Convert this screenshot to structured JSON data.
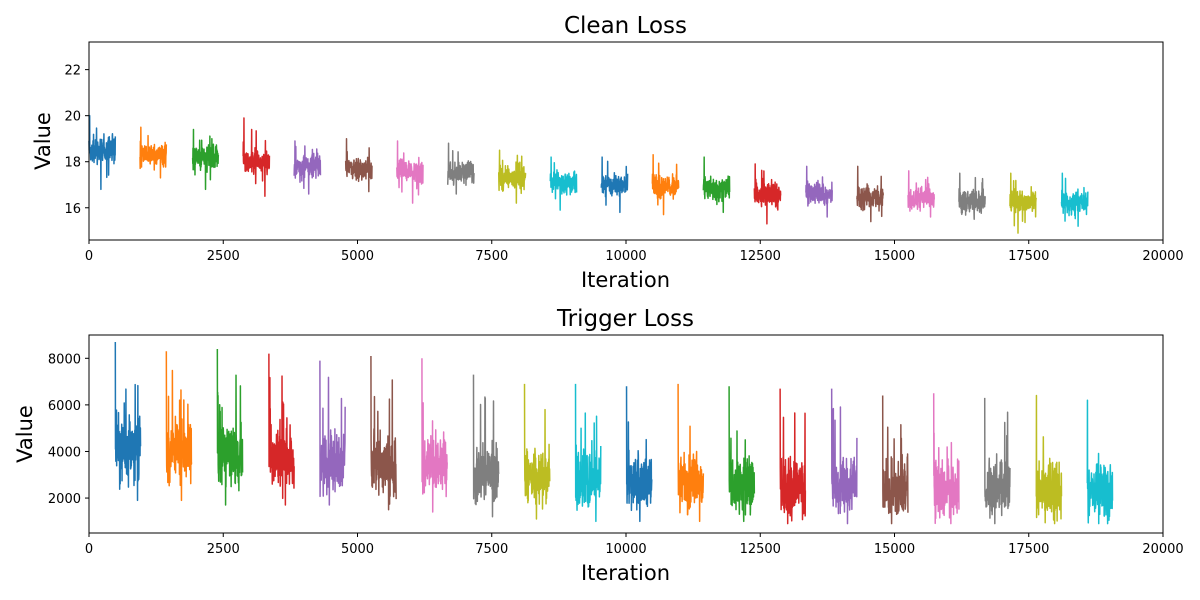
{
  "colors": [
    "#1f77b4",
    "#ff7f0e",
    "#2ca02c",
    "#d62728",
    "#9467bd",
    "#8c564b",
    "#e377c2",
    "#7f7f7f",
    "#bcbd22",
    "#17becf"
  ],
  "chart_data": [
    {
      "type": "line",
      "title": "Clean Loss",
      "xlabel": "Iteration",
      "ylabel": "Value",
      "xlim": [
        0,
        20000
      ],
      "ylim": [
        14.6,
        23.2
      ],
      "xticks": [
        0,
        2500,
        5000,
        7500,
        10000,
        12500,
        15000,
        17500,
        20000
      ],
      "yticks": [
        16,
        18,
        20,
        22
      ],
      "grid": false,
      "legend": "none",
      "series": [
        {
          "x_start": 0,
          "x_end": 490,
          "mean": 18.5,
          "spread": 0.6,
          "min": 16.8,
          "max": 20.0
        },
        {
          "x_start": 950,
          "x_end": 1440,
          "mean": 18.3,
          "spread": 0.5,
          "min": 17.3,
          "max": 19.5
        },
        {
          "x_start": 1930,
          "x_end": 2410,
          "mean": 18.2,
          "spread": 0.5,
          "min": 16.8,
          "max": 19.4
        },
        {
          "x_start": 2870,
          "x_end": 3360,
          "mean": 18.0,
          "spread": 0.5,
          "min": 16.5,
          "max": 19.9
        },
        {
          "x_start": 3820,
          "x_end": 4310,
          "mean": 17.8,
          "spread": 0.5,
          "min": 16.6,
          "max": 18.9
        },
        {
          "x_start": 4780,
          "x_end": 5270,
          "mean": 17.7,
          "spread": 0.5,
          "min": 16.7,
          "max": 19.0
        },
        {
          "x_start": 5730,
          "x_end": 6220,
          "mean": 17.6,
          "spread": 0.5,
          "min": 16.2,
          "max": 18.9
        },
        {
          "x_start": 6680,
          "x_end": 7170,
          "mean": 17.5,
          "spread": 0.5,
          "min": 16.6,
          "max": 18.8
        },
        {
          "x_start": 7630,
          "x_end": 8130,
          "mean": 17.3,
          "spread": 0.5,
          "min": 16.2,
          "max": 18.5
        },
        {
          "x_start": 8590,
          "x_end": 9080,
          "mean": 17.1,
          "spread": 0.5,
          "min": 15.9,
          "max": 18.2
        },
        {
          "x_start": 9540,
          "x_end": 10030,
          "mean": 17.0,
          "spread": 0.5,
          "min": 15.8,
          "max": 18.2
        },
        {
          "x_start": 10490,
          "x_end": 10980,
          "mean": 16.9,
          "spread": 0.5,
          "min": 15.7,
          "max": 18.3
        },
        {
          "x_start": 11440,
          "x_end": 11930,
          "mean": 16.8,
          "spread": 0.5,
          "min": 15.8,
          "max": 18.2
        },
        {
          "x_start": 12390,
          "x_end": 12880,
          "mean": 16.6,
          "spread": 0.5,
          "min": 15.3,
          "max": 17.9
        },
        {
          "x_start": 13350,
          "x_end": 13840,
          "mean": 16.6,
          "spread": 0.5,
          "min": 15.6,
          "max": 17.8
        },
        {
          "x_start": 14300,
          "x_end": 14790,
          "mean": 16.5,
          "spread": 0.5,
          "min": 15.4,
          "max": 17.8
        },
        {
          "x_start": 15250,
          "x_end": 15740,
          "mean": 16.4,
          "spread": 0.5,
          "min": 15.6,
          "max": 17.6
        },
        {
          "x_start": 16200,
          "x_end": 16690,
          "mean": 16.3,
          "spread": 0.5,
          "min": 15.5,
          "max": 17.5
        },
        {
          "x_start": 17150,
          "x_end": 17640,
          "mean": 16.3,
          "spread": 0.5,
          "min": 14.9,
          "max": 17.5
        },
        {
          "x_start": 18110,
          "x_end": 18600,
          "mean": 16.2,
          "spread": 0.5,
          "min": 15.2,
          "max": 17.5
        }
      ]
    },
    {
      "type": "line",
      "title": "Trigger Loss",
      "xlabel": "Iteration",
      "ylabel": "Value",
      "xlim": [
        0,
        20000
      ],
      "ylim": [
        500,
        9000
      ],
      "xticks": [
        0,
        2500,
        5000,
        7500,
        10000,
        12500,
        15000,
        17500,
        20000
      ],
      "yticks": [
        2000,
        4000,
        6000,
        8000
      ],
      "grid": false,
      "legend": "none",
      "series": [
        {
          "x_start": 490,
          "x_end": 960,
          "mean": 4200,
          "spread": 1300,
          "min": 1900,
          "max": 8700
        },
        {
          "x_start": 1440,
          "x_end": 1910,
          "mean": 4000,
          "spread": 1300,
          "min": 1900,
          "max": 8300
        },
        {
          "x_start": 2390,
          "x_end": 2860,
          "mean": 3800,
          "spread": 1300,
          "min": 1700,
          "max": 8400
        },
        {
          "x_start": 3350,
          "x_end": 3820,
          "mean": 3700,
          "spread": 1300,
          "min": 1700,
          "max": 8200
        },
        {
          "x_start": 4300,
          "x_end": 4770,
          "mean": 3500,
          "spread": 1300,
          "min": 1700,
          "max": 7900
        },
        {
          "x_start": 5250,
          "x_end": 5720,
          "mean": 3400,
          "spread": 1300,
          "min": 1500,
          "max": 8100
        },
        {
          "x_start": 6200,
          "x_end": 6670,
          "mean": 3300,
          "spread": 1300,
          "min": 1400,
          "max": 8000
        },
        {
          "x_start": 7160,
          "x_end": 7630,
          "mean": 3000,
          "spread": 1200,
          "min": 1200,
          "max": 7300
        },
        {
          "x_start": 8110,
          "x_end": 8580,
          "mean": 2900,
          "spread": 1200,
          "min": 1100,
          "max": 6900
        },
        {
          "x_start": 9060,
          "x_end": 9530,
          "mean": 2800,
          "spread": 1200,
          "min": 1000,
          "max": 6900
        },
        {
          "x_start": 10010,
          "x_end": 10480,
          "mean": 2700,
          "spread": 1200,
          "min": 1000,
          "max": 6800
        },
        {
          "x_start": 10970,
          "x_end": 11440,
          "mean": 2700,
          "spread": 1200,
          "min": 1000,
          "max": 6900
        },
        {
          "x_start": 11920,
          "x_end": 12390,
          "mean": 2600,
          "spread": 1200,
          "min": 1000,
          "max": 6800
        },
        {
          "x_start": 12870,
          "x_end": 13340,
          "mean": 2500,
          "spread": 1200,
          "min": 900,
          "max": 6700
        },
        {
          "x_start": 13830,
          "x_end": 14300,
          "mean": 2500,
          "spread": 1200,
          "min": 900,
          "max": 6700
        },
        {
          "x_start": 14780,
          "x_end": 15250,
          "mean": 2400,
          "spread": 1200,
          "min": 900,
          "max": 6400
        },
        {
          "x_start": 15730,
          "x_end": 16200,
          "mean": 2400,
          "spread": 1200,
          "min": 900,
          "max": 6500
        },
        {
          "x_start": 16680,
          "x_end": 17150,
          "mean": 2400,
          "spread": 1200,
          "min": 900,
          "max": 6300
        },
        {
          "x_start": 17640,
          "x_end": 18110,
          "mean": 2400,
          "spread": 1200,
          "min": 900,
          "max": 6400
        },
        {
          "x_start": 18590,
          "x_end": 19060,
          "mean": 2300,
          "spread": 1200,
          "min": 900,
          "max": 6200
        }
      ]
    }
  ]
}
